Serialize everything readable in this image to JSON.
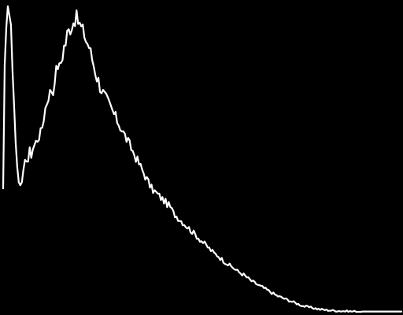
{
  "chart_data": {
    "type": "line",
    "title": "",
    "xlabel": "",
    "ylabel": "",
    "xlim": [
      0,
      255
    ],
    "ylim": [
      0,
      100
    ],
    "grid": false,
    "legend": "none",
    "colors": {
      "background": "#000000",
      "line": "#ffffff"
    },
    "series": [
      {
        "values": [
          40,
          80,
          92,
          99,
          96,
          93,
          78,
          67,
          55,
          47,
          42,
          41,
          42,
          45,
          48,
          50,
          49,
          52,
          51,
          53,
          54,
          55,
          56,
          57,
          58,
          60,
          63,
          66,
          68,
          70,
          71,
          72,
          71,
          76,
          78,
          80,
          79,
          81,
          83,
          86,
          87,
          90,
          91,
          92,
          93,
          94,
          95,
          95,
          94,
          93,
          92,
          91,
          90,
          88,
          87,
          86,
          84,
          82,
          80,
          78,
          76,
          75,
          73,
          72,
          71,
          70,
          69,
          68,
          67,
          66,
          65,
          64,
          63,
          62,
          61,
          60,
          59,
          58,
          57,
          56,
          55,
          54,
          53,
          52,
          51,
          50,
          49,
          48,
          47,
          46,
          45,
          44,
          43,
          42,
          41,
          40,
          39.5,
          39,
          38.5,
          38,
          37.5,
          37,
          36.5,
          36,
          35.5,
          35,
          34.5,
          34,
          33,
          32,
          31.5,
          31,
          30.5,
          30,
          29.5,
          29,
          28.5,
          28,
          27.5,
          27,
          26.5,
          26,
          25.5,
          25,
          24.5,
          24,
          23.5,
          23,
          22.5,
          22,
          21.5,
          21,
          20.5,
          20,
          19.5,
          19,
          18.7,
          18.4,
          18,
          17.5,
          17,
          16.6,
          16.2,
          15.8,
          15.4,
          15,
          14.7,
          14.4,
          14,
          13.6,
          13.2,
          12.9,
          12.6,
          12.3,
          12,
          11.6,
          11.2,
          10.8,
          10.4,
          10,
          9.7,
          9.4,
          9.1,
          8.8,
          8.5,
          8.2,
          8,
          7.7,
          7.4,
          7.1,
          6.8,
          6.5,
          6.2,
          5.9,
          5.6,
          5.3,
          5.1,
          4.9,
          4.7,
          4.5,
          4.3,
          4.1,
          3.9,
          3.7,
          3.5,
          3.3,
          3.1,
          2.9,
          2.7,
          2.5,
          2.3,
          2.1,
          1.9,
          1.8,
          1.7,
          1.6,
          1.5,
          1.4,
          1.3,
          1.2,
          1.1,
          1.0,
          0.9,
          0.8,
          0.75,
          0.7,
          0.65,
          0.6,
          0.55,
          0.5,
          0.45,
          0.4,
          0.38,
          0.35,
          0.33,
          0.3,
          0.28,
          0.25,
          0.23,
          0.2,
          0.18,
          0.16,
          0.15,
          0.14,
          0.13,
          0.12,
          0.11,
          0.1,
          0.1,
          0.1,
          0.1,
          0.1,
          0.1,
          0.1,
          0.1,
          0.1,
          0.1,
          0.1,
          0.1,
          0.1,
          0.1,
          0.1,
          0.1,
          0.1,
          0.1,
          0.1,
          0.1,
          0.1,
          0.1,
          0.1,
          0.1,
          0.1,
          0.1,
          0.1,
          0.1,
          0.1
        ]
      }
    ]
  }
}
